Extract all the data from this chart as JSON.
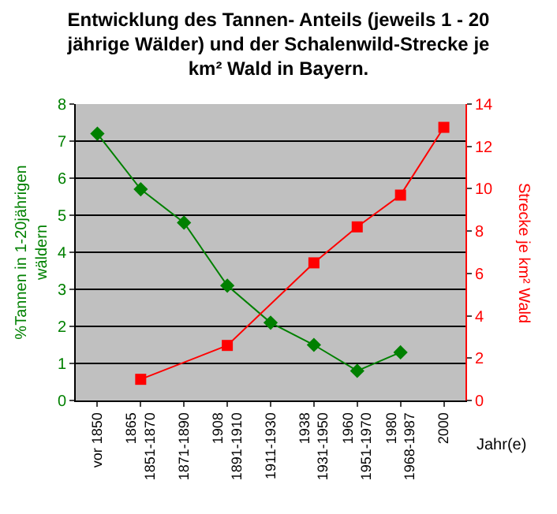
{
  "chart_data": {
    "type": "line",
    "title": "Entwicklung des Tannen- Anteils (jeweils 1 - 20\njährige Wälder) und der Schalenwild-Strecke je\nkm² Wald in Bayern.",
    "xlabel": "Jahr(e)",
    "ylabel": "%Tannen in 1-20jährigen\nwäldern",
    "y2label": "Strecke je km² Wald",
    "categories": [
      "vor 1850",
      "1865\n1851-1870",
      "1871-1890",
      "1908\n1891-1910",
      "1911-1930",
      "1938\n1931-1950",
      "1960\n1951-1970",
      "1980\n1968-1987",
      "2000"
    ],
    "series": [
      {
        "color": "#008000",
        "marker": "diamond",
        "values": [
          7.2,
          5.7,
          4.8,
          3.1,
          2.1,
          1.5,
          0.8,
          1.3,
          null
        ]
      },
      {
        "color": "#ff0000",
        "marker": "square",
        "axis": "y2",
        "values": [
          null,
          1.0,
          null,
          2.6,
          null,
          6.5,
          8.2,
          9.7,
          12.9
        ]
      }
    ],
    "ylim": [
      0,
      8
    ],
    "yticks": [
      0,
      1,
      2,
      3,
      4,
      5,
      6,
      7,
      8
    ],
    "y2lim": [
      0,
      14
    ],
    "y2ticks": [
      0,
      2,
      4,
      6,
      8,
      10,
      12,
      14
    ],
    "grid": "y"
  }
}
